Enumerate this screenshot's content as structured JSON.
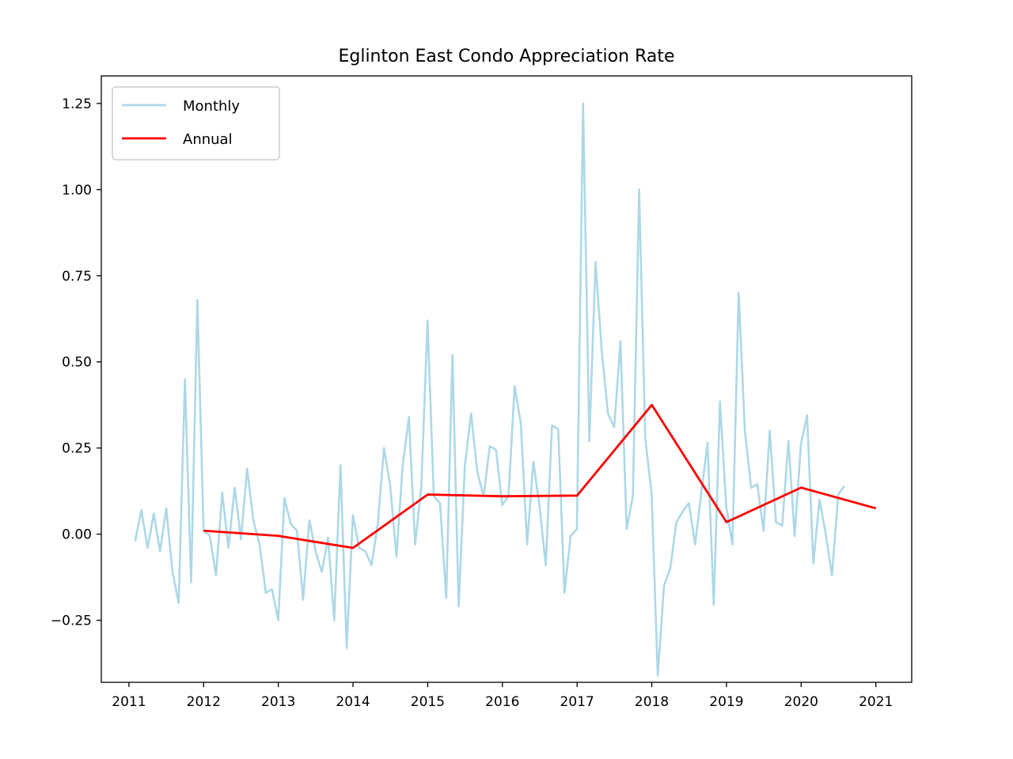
{
  "chart_data": {
    "type": "line",
    "title": "Eglinton East Condo Appreciation Rate",
    "xlabel": "",
    "ylabel": "",
    "xlim": [
      2010.63,
      2021.48
    ],
    "ylim": [
      -0.43,
      1.33
    ],
    "grid": false,
    "legend_position": "top-left",
    "x_tick_labels": [
      "2011",
      "2012",
      "2013",
      "2014",
      "2015",
      "2016",
      "2017",
      "2018",
      "2019",
      "2020",
      "2021"
    ],
    "x_ticks": [
      2011,
      2012,
      2013,
      2014,
      2015,
      2016,
      2017,
      2018,
      2019,
      2020,
      2021
    ],
    "y_tick_labels": [
      "−0.25",
      "0.00",
      "0.25",
      "0.50",
      "0.75",
      "1.00",
      "1.25"
    ],
    "y_ticks": [
      -0.25,
      0,
      0.25,
      0.5,
      0.75,
      1.0,
      1.25
    ],
    "series": [
      {
        "name": "Monthly",
        "color": "#add8e6",
        "x_start": 2011.083,
        "x_step": 0.0833,
        "values": [
          -0.02,
          0.07,
          -0.04,
          0.06,
          -0.05,
          0.075,
          -0.11,
          -0.2,
          0.45,
          -0.14,
          0.68,
          0.01,
          -0.005,
          -0.12,
          0.12,
          -0.04,
          0.135,
          -0.015,
          0.19,
          0.04,
          -0.03,
          -0.17,
          -0.16,
          -0.25,
          0.105,
          0.03,
          0.01,
          -0.19,
          0.04,
          -0.05,
          -0.11,
          -0.01,
          -0.25,
          0.2,
          -0.33,
          0.055,
          -0.04,
          -0.05,
          -0.09,
          0.03,
          0.25,
          0.14,
          -0.065,
          0.2,
          0.34,
          -0.03,
          0.14,
          0.62,
          0.11,
          0.09,
          -0.185,
          0.52,
          -0.21,
          0.2,
          0.35,
          0.18,
          0.11,
          0.255,
          0.245,
          0.085,
          0.11,
          0.43,
          0.32,
          -0.03,
          0.21,
          0.08,
          -0.09,
          0.315,
          0.305,
          -0.17,
          -0.005,
          0.015,
          1.25,
          0.27,
          0.79,
          0.53,
          0.35,
          0.31,
          0.56,
          0.015,
          0.11,
          1.0,
          0.275,
          0.12,
          -0.41,
          -0.15,
          -0.1,
          0.035,
          0.065,
          0.09,
          -0.03,
          0.12,
          0.265,
          -0.205,
          0.385,
          0.08,
          -0.03,
          0.7,
          0.3,
          0.135,
          0.145,
          0.01,
          0.3,
          0.035,
          0.025,
          0.27,
          -0.005,
          0.26,
          0.345,
          -0.085,
          0.1,
          0.0,
          -0.12,
          0.115,
          0.14
        ]
      },
      {
        "name": "Annual",
        "color": "#ff0000",
        "x": [
          2012,
          2013,
          2014,
          2015,
          2016,
          2017,
          2018,
          2019,
          2020,
          2021
        ],
        "values": [
          0.01,
          -0.005,
          -0.04,
          0.115,
          0.11,
          0.112,
          0.375,
          0.035,
          0.135,
          0.075
        ]
      }
    ]
  }
}
